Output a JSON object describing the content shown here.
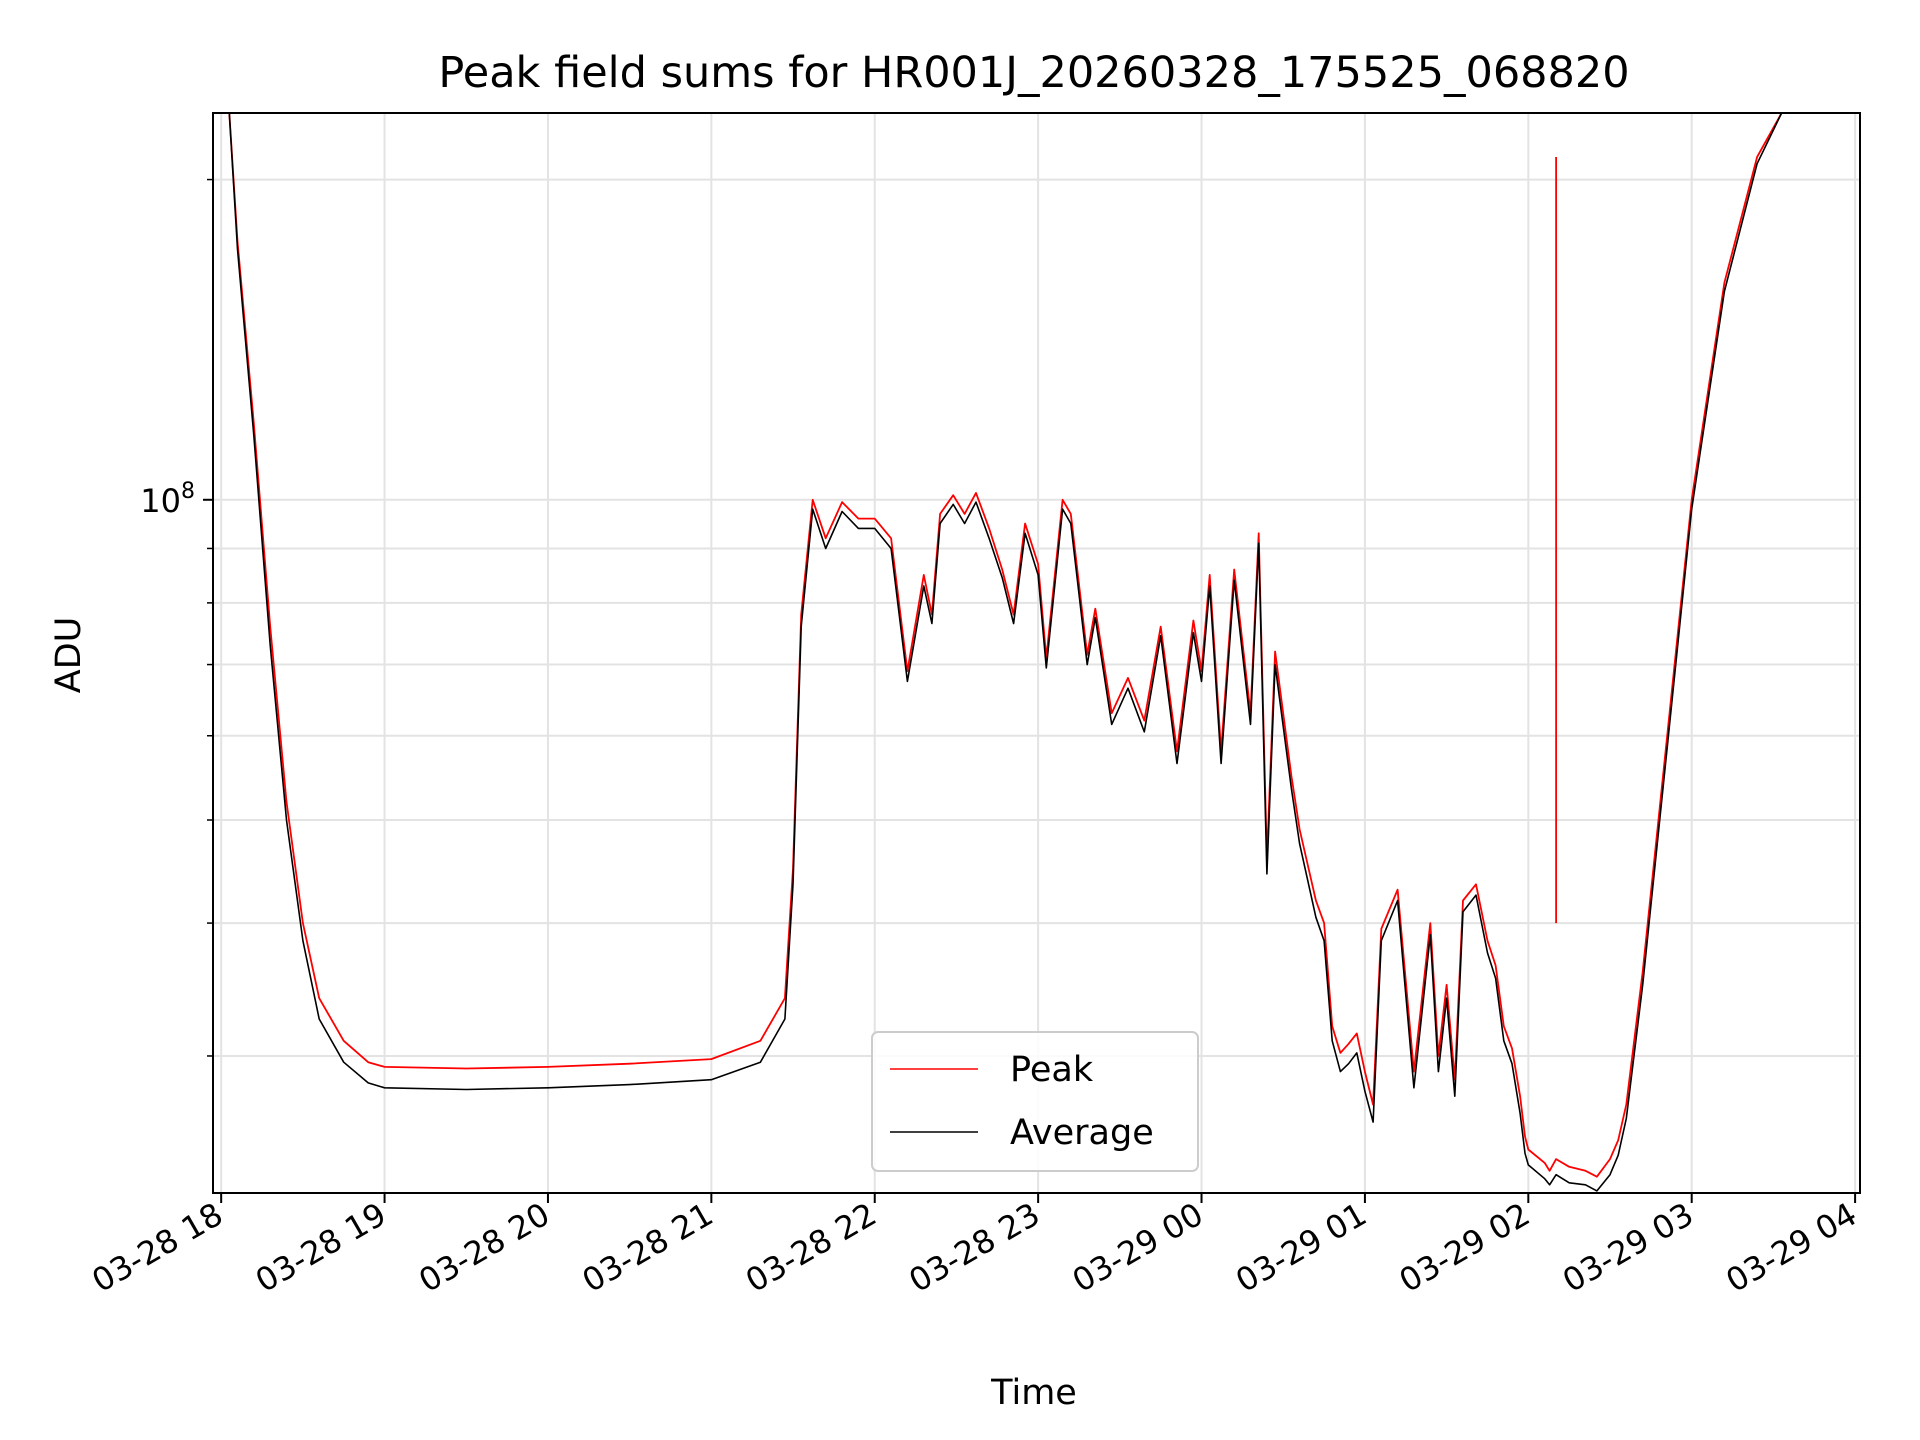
{
  "chart_data": {
    "type": "line",
    "title": "Peak field sums for HR001J_20260328_175525_068820",
    "xlabel": "Time",
    "ylabel": "ADU",
    "yscale": "log",
    "grid": true,
    "legend_position": "bottom-center",
    "x_unit": "hours since 03-28 18:00",
    "xlim": [
      -0.05,
      10.03
    ],
    "ylim": [
      22300000,
      231000000
    ],
    "x_tick_values": [
      0,
      1,
      2,
      3,
      4,
      5,
      6,
      7,
      8,
      9,
      10
    ],
    "x_tick_labels": [
      "03-28 18",
      "03-28 19",
      "03-28 20",
      "03-28 21",
      "03-28 22",
      "03-28 23",
      "03-29 00",
      "03-29 01",
      "03-29 02",
      "03-29 03",
      "03-29 04"
    ],
    "y_major_ticks": [
      {
        "value": 100000000,
        "label_base": "10",
        "label_exp": "8"
      }
    ],
    "series": [
      {
        "name": "Peak",
        "color": "#ff0000",
        "x": [
          0.05,
          0.1,
          0.2,
          0.3,
          0.4,
          0.5,
          0.6,
          0.75,
          0.9,
          1.0,
          1.5,
          2.0,
          2.5,
          3.0,
          3.3,
          3.45,
          3.5,
          3.55,
          3.62,
          3.7,
          3.8,
          3.9,
          4.0,
          4.1,
          4.2,
          4.3,
          4.35,
          4.4,
          4.48,
          4.55,
          4.62,
          4.7,
          4.78,
          4.85,
          4.92,
          5.0,
          5.05,
          5.15,
          5.2,
          5.3,
          5.35,
          5.45,
          5.55,
          5.65,
          5.75,
          5.85,
          5.95,
          6.0,
          6.05,
          6.12,
          6.2,
          6.3,
          6.35,
          6.4,
          6.45,
          6.55,
          6.6,
          6.7,
          6.75,
          6.8,
          6.85,
          6.9,
          6.95,
          7.0,
          7.05,
          7.1,
          7.2,
          7.3,
          7.4,
          7.45,
          7.5,
          7.55,
          7.6,
          7.68,
          7.75,
          7.8,
          7.85,
          7.9,
          7.95,
          7.98,
          8.0,
          8.1,
          8.13,
          8.17,
          8.25,
          8.35,
          8.42,
          8.5,
          8.55,
          8.6,
          8.7,
          8.85,
          9.0,
          9.2,
          9.4,
          9.55,
          9.7,
          9.85,
          10.0,
          10.03
        ],
        "values": [
          231000000,
          175000000,
          118000000,
          76000000,
          52000000,
          40000000,
          34000000,
          31000000,
          29600000,
          29300000,
          29200000,
          29300000,
          29500000,
          29800000,
          31000000,
          34000000,
          45000000,
          78000000,
          100000000,
          92000000,
          99500000,
          96000000,
          96000000,
          92000000,
          69000000,
          85000000,
          78000000,
          97000000,
          101000000,
          97000000,
          101500000,
          94000000,
          86000000,
          78000000,
          95000000,
          87000000,
          71000000,
          100000000,
          97000000,
          71500000,
          79000000,
          63000000,
          68000000,
          62000000,
          76000000,
          58000000,
          77000000,
          69000000,
          85000000,
          58000000,
          86000000,
          63000000,
          93000000,
          46000000,
          72000000,
          55000000,
          49000000,
          42000000,
          40000000,
          32000000,
          30200000,
          30800000,
          31500000,
          29000000,
          27000000,
          39500000,
          43000000,
          29000000,
          40000000,
          30000000,
          35000000,
          28500000,
          42000000,
          43500000,
          38500000,
          36500000,
          32000000,
          30500000,
          27500000,
          25200000,
          24500000,
          23800000,
          23400000,
          24000000,
          23600000,
          23400000,
          23100000,
          24000000,
          25000000,
          27000000,
          36000000,
          60000000,
          100000000,
          160000000,
          210000000,
          231000000,
          231000000,
          231000000,
          231000000,
          231000000
        ]
      },
      {
        "name": "Average",
        "color": "#000000",
        "x": [
          0.05,
          0.1,
          0.2,
          0.3,
          0.4,
          0.5,
          0.6,
          0.75,
          0.9,
          1.0,
          1.5,
          2.0,
          2.5,
          3.0,
          3.3,
          3.45,
          3.5,
          3.55,
          3.62,
          3.7,
          3.8,
          3.9,
          4.0,
          4.1,
          4.2,
          4.3,
          4.35,
          4.4,
          4.48,
          4.55,
          4.62,
          4.7,
          4.78,
          4.85,
          4.92,
          5.0,
          5.05,
          5.15,
          5.2,
          5.3,
          5.35,
          5.45,
          5.55,
          5.65,
          5.75,
          5.85,
          5.95,
          6.0,
          6.05,
          6.12,
          6.2,
          6.3,
          6.35,
          6.4,
          6.45,
          6.55,
          6.6,
          6.7,
          6.75,
          6.8,
          6.85,
          6.9,
          6.95,
          7.0,
          7.05,
          7.1,
          7.2,
          7.3,
          7.4,
          7.45,
          7.5,
          7.55,
          7.6,
          7.68,
          7.75,
          7.8,
          7.85,
          7.9,
          7.95,
          7.98,
          8.0,
          8.1,
          8.13,
          8.17,
          8.25,
          8.35,
          8.42,
          8.5,
          8.55,
          8.6,
          8.7,
          8.85,
          9.0,
          9.2,
          9.4,
          9.55,
          9.7,
          9.85,
          10.0,
          10.03
        ],
        "values": [
          231000000,
          172000000,
          115000000,
          73000000,
          50000000,
          38500000,
          32500000,
          29600000,
          28300000,
          28000000,
          27900000,
          28000000,
          28200000,
          28500000,
          29600000,
          32500000,
          43500000,
          76000000,
          98000000,
          90000000,
          97500000,
          94000000,
          94000000,
          90000000,
          67500000,
          83000000,
          76500000,
          95000000,
          99000000,
          95000000,
          99500000,
          92000000,
          84500000,
          76500000,
          93000000,
          85000000,
          69500000,
          98000000,
          95000000,
          70000000,
          77500000,
          61500000,
          66500000,
          60500000,
          74500000,
          56500000,
          75000000,
          67500000,
          83000000,
          56500000,
          84000000,
          61500000,
          91000000,
          44500000,
          70000000,
          53500000,
          47500000,
          40500000,
          38500000,
          31000000,
          29000000,
          29500000,
          30200000,
          27800000,
          26000000,
          38500000,
          42000000,
          28000000,
          39000000,
          29000000,
          34000000,
          27500000,
          41000000,
          42500000,
          37500000,
          35500000,
          31000000,
          29500000,
          26500000,
          24300000,
          23700000,
          23000000,
          22700000,
          23200000,
          22800000,
          22700000,
          22400000,
          23200000,
          24200000,
          26200000,
          35000000,
          58500000,
          98000000,
          157000000,
          207000000,
          231000000,
          231000000,
          231000000,
          231000000,
          231000000
        ]
      },
      {
        "name": "Peak spike",
        "legend": false,
        "color": "#ff0000",
        "x": [
          8.17,
          8.17
        ],
        "values": [
          40000000,
          210000000
        ]
      }
    ]
  }
}
